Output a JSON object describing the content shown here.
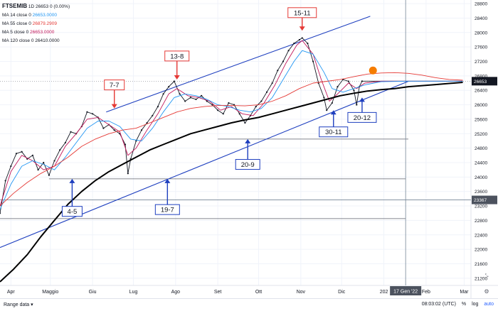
{
  "legend": {
    "symbol": "FTSEMIB",
    "interval": "1D",
    "last": "26653",
    "change": "0 (0.00%)",
    "ma14": {
      "label": "MA 14 close 0",
      "value": "26653.0000",
      "color": "#2196f3"
    },
    "ma55": {
      "label": "MA 55 close 0",
      "value": "26879.2909",
      "color": "#e53935"
    },
    "ma5": {
      "label": "MA 5 close 0",
      "value": "26653.0000",
      "color": "#c2185b"
    },
    "ma120": {
      "label": "MA 120 close 0",
      "value": "26410.0000",
      "color": "#000000"
    }
  },
  "bottombar": {
    "range_label": "Range data",
    "time": "08:03:02 (UTC)",
    "percent": "%",
    "log": "log",
    "auto": "auto"
  },
  "chart_data": {
    "type": "line",
    "ylim": [
      21000,
      28900
    ],
    "yticks": [
      21200,
      21600,
      22000,
      22400,
      22800,
      23200,
      23600,
      24000,
      24400,
      24800,
      25200,
      25600,
      26000,
      26400,
      26800,
      27200,
      27600,
      28000,
      28400,
      28800
    ],
    "xticks": [
      {
        "label": "Apr",
        "day": 8
      },
      {
        "label": "Maggio",
        "day": 37
      },
      {
        "label": "Giu",
        "day": 68
      },
      {
        "label": "Lug",
        "day": 98
      },
      {
        "label": "Ago",
        "day": 129
      },
      {
        "label": "Set",
        "day": 160
      },
      {
        "label": "Ott",
        "day": 190
      },
      {
        "label": "Nov",
        "day": 221
      },
      {
        "label": "Dic",
        "day": 251
      },
      {
        "label": "202",
        "day": 282
      },
      {
        "label": "Feb",
        "day": 313
      },
      {
        "label": "Mar",
        "day": 341
      }
    ],
    "crosshair": {
      "date_label": "17 Gen '22",
      "day": 298,
      "price_label": "23367",
      "price": 23367
    },
    "last_price_label": "26653",
    "series": [
      {
        "color": "#131722",
        "points": [
          [
            0,
            23000
          ],
          [
            4,
            23900
          ],
          [
            8,
            24300
          ],
          [
            12,
            24650
          ],
          [
            16,
            24700
          ],
          [
            20,
            24500
          ],
          [
            24,
            24600
          ],
          [
            28,
            24200
          ],
          [
            32,
            24400
          ],
          [
            36,
            24050
          ],
          [
            40,
            24450
          ],
          [
            44,
            24750
          ],
          [
            48,
            24950
          ],
          [
            52,
            25250
          ],
          [
            56,
            25200
          ],
          [
            60,
            25400
          ],
          [
            64,
            25800
          ],
          [
            68,
            25750
          ],
          [
            72,
            25650
          ],
          [
            76,
            25350
          ],
          [
            80,
            25450
          ],
          [
            84,
            25300
          ],
          [
            88,
            25200
          ],
          [
            92,
            24900
          ],
          [
            94,
            24100
          ],
          [
            96,
            24500
          ],
          [
            100,
            25000
          ],
          [
            104,
            25300
          ],
          [
            108,
            25500
          ],
          [
            112,
            25700
          ],
          [
            116,
            25950
          ],
          [
            120,
            26300
          ],
          [
            124,
            26500
          ],
          [
            128,
            26650
          ],
          [
            132,
            26300
          ],
          [
            136,
            26100
          ],
          [
            140,
            26200
          ],
          [
            144,
            26150
          ],
          [
            148,
            26250
          ],
          [
            152,
            26100
          ],
          [
            156,
            26000
          ],
          [
            160,
            25850
          ],
          [
            164,
            25750
          ],
          [
            168,
            26050
          ],
          [
            172,
            26000
          ],
          [
            176,
            25750
          ],
          [
            180,
            25500
          ],
          [
            184,
            25700
          ],
          [
            188,
            25950
          ],
          [
            192,
            26100
          ],
          [
            196,
            26350
          ],
          [
            200,
            26600
          ],
          [
            204,
            26950
          ],
          [
            208,
            27200
          ],
          [
            212,
            27500
          ],
          [
            216,
            27700
          ],
          [
            220,
            27800
          ],
          [
            222,
            27850
          ],
          [
            226,
            27700
          ],
          [
            230,
            27200
          ],
          [
            234,
            26600
          ],
          [
            238,
            26200
          ],
          [
            240,
            25850
          ],
          [
            244,
            26050
          ],
          [
            248,
            26500
          ],
          [
            252,
            26700
          ],
          [
            256,
            26650
          ],
          [
            260,
            26400
          ],
          [
            262,
            26000
          ],
          [
            264,
            26500
          ],
          [
            266,
            26653
          ],
          [
            270,
            26653
          ],
          [
            280,
            26653
          ],
          [
            300,
            26653
          ],
          [
            340,
            26653
          ]
        ]
      },
      {
        "color": "#c2185b",
        "points": [
          [
            0,
            23200
          ],
          [
            8,
            24150
          ],
          [
            16,
            24600
          ],
          [
            24,
            24450
          ],
          [
            32,
            24200
          ],
          [
            40,
            24300
          ],
          [
            48,
            24850
          ],
          [
            56,
            25200
          ],
          [
            64,
            25600
          ],
          [
            72,
            25650
          ],
          [
            80,
            25450
          ],
          [
            88,
            25250
          ],
          [
            94,
            24600
          ],
          [
            100,
            24800
          ],
          [
            108,
            25300
          ],
          [
            116,
            25750
          ],
          [
            124,
            26300
          ],
          [
            130,
            26450
          ],
          [
            138,
            26250
          ],
          [
            146,
            26200
          ],
          [
            154,
            26100
          ],
          [
            162,
            25850
          ],
          [
            170,
            25950
          ],
          [
            178,
            25750
          ],
          [
            186,
            25700
          ],
          [
            194,
            26050
          ],
          [
            202,
            26550
          ],
          [
            210,
            27150
          ],
          [
            218,
            27650
          ],
          [
            222,
            27780
          ],
          [
            230,
            27400
          ],
          [
            236,
            26700
          ],
          [
            242,
            26100
          ],
          [
            248,
            26300
          ],
          [
            256,
            26600
          ],
          [
            262,
            26450
          ],
          [
            268,
            26600
          ],
          [
            280,
            26653
          ],
          [
            340,
            26653
          ]
        ]
      },
      {
        "color": "#2196f3",
        "points": [
          [
            0,
            23100
          ],
          [
            8,
            23800
          ],
          [
            16,
            24300
          ],
          [
            24,
            24450
          ],
          [
            32,
            24350
          ],
          [
            40,
            24200
          ],
          [
            48,
            24550
          ],
          [
            56,
            24950
          ],
          [
            64,
            25350
          ],
          [
            72,
            25550
          ],
          [
            80,
            25550
          ],
          [
            88,
            25400
          ],
          [
            96,
            25050
          ],
          [
            104,
            25000
          ],
          [
            112,
            25350
          ],
          [
            120,
            25800
          ],
          [
            128,
            26200
          ],
          [
            136,
            26300
          ],
          [
            144,
            26250
          ],
          [
            152,
            26150
          ],
          [
            160,
            26000
          ],
          [
            168,
            25950
          ],
          [
            176,
            25850
          ],
          [
            184,
            25800
          ],
          [
            192,
            25900
          ],
          [
            200,
            26200
          ],
          [
            208,
            26700
          ],
          [
            216,
            27200
          ],
          [
            222,
            27500
          ],
          [
            230,
            27400
          ],
          [
            238,
            26900
          ],
          [
            244,
            26450
          ],
          [
            252,
            26350
          ],
          [
            260,
            26450
          ],
          [
            268,
            26550
          ],
          [
            280,
            26640
          ],
          [
            300,
            26653
          ],
          [
            340,
            26653
          ]
        ]
      },
      {
        "color": "#e53935",
        "points": [
          [
            0,
            23200
          ],
          [
            10,
            23550
          ],
          [
            20,
            23850
          ],
          [
            30,
            24100
          ],
          [
            40,
            24300
          ],
          [
            50,
            24550
          ],
          [
            60,
            24850
          ],
          [
            70,
            25050
          ],
          [
            80,
            25200
          ],
          [
            90,
            25300
          ],
          [
            100,
            25350
          ],
          [
            110,
            25500
          ],
          [
            120,
            25650
          ],
          [
            130,
            25800
          ],
          [
            140,
            25900
          ],
          [
            150,
            25950
          ],
          [
            160,
            25980
          ],
          [
            170,
            25980
          ],
          [
            180,
            25970
          ],
          [
            190,
            26000
          ],
          [
            200,
            26100
          ],
          [
            210,
            26250
          ],
          [
            220,
            26450
          ],
          [
            230,
            26600
          ],
          [
            240,
            26650
          ],
          [
            250,
            26700
          ],
          [
            260,
            26780
          ],
          [
            270,
            26850
          ],
          [
            280,
            26880
          ],
          [
            290,
            26890
          ],
          [
            300,
            26870
          ],
          [
            310,
            26820
          ],
          [
            320,
            26750
          ],
          [
            330,
            26700
          ],
          [
            340,
            26680
          ]
        ]
      },
      {
        "color": "#000000",
        "width": 2,
        "points": [
          [
            0,
            21100
          ],
          [
            10,
            21450
          ],
          [
            20,
            21850
          ],
          [
            30,
            22350
          ],
          [
            40,
            22800
          ],
          [
            50,
            23250
          ],
          [
            60,
            23600
          ],
          [
            70,
            23900
          ],
          [
            80,
            24150
          ],
          [
            90,
            24350
          ],
          [
            100,
            24550
          ],
          [
            110,
            24750
          ],
          [
            120,
            24900
          ],
          [
            130,
            25050
          ],
          [
            140,
            25200
          ],
          [
            150,
            25300
          ],
          [
            160,
            25400
          ],
          [
            170,
            25500
          ],
          [
            180,
            25580
          ],
          [
            190,
            25650
          ],
          [
            200,
            25750
          ],
          [
            210,
            25850
          ],
          [
            220,
            25950
          ],
          [
            230,
            26050
          ],
          [
            240,
            26150
          ],
          [
            250,
            26250
          ],
          [
            260,
            26320
          ],
          [
            270,
            26380
          ],
          [
            280,
            26420
          ],
          [
            290,
            26450
          ],
          [
            300,
            26500
          ],
          [
            320,
            26560
          ],
          [
            340,
            26620
          ]
        ]
      }
    ],
    "trendlines": [
      {
        "color": "#1e3fbf",
        "from": [
          78,
          25800
        ],
        "to": [
          272,
          28450
        ]
      },
      {
        "color": "#1e3fbf",
        "from": [
          0,
          22050
        ],
        "to": [
          300,
          26650
        ]
      }
    ],
    "hlines": [
      {
        "price": 25050,
        "from": 160,
        "to": 300
      },
      {
        "price": 23950,
        "from": 36,
        "to": 298
      },
      {
        "price": 22850,
        "from": 0,
        "to": 298
      }
    ],
    "marker": {
      "day": 274,
      "price": 26950,
      "color": "#f57c00"
    },
    "annotations": [
      {
        "label": "15-11",
        "style": "red",
        "day": 222,
        "price": 28550,
        "arrow_to": 28050
      },
      {
        "label": "13-8",
        "style": "red",
        "day": 130,
        "price": 27350,
        "arrow_to": 26700
      },
      {
        "label": "7-7",
        "style": "red",
        "day": 84,
        "price": 26550,
        "arrow_to": 25900
      },
      {
        "label": "4-5",
        "style": "blue",
        "day": 53,
        "price": 23050,
        "arrow_to": 23950
      },
      {
        "label": "19-7",
        "style": "blue",
        "day": 123,
        "price": 23100,
        "arrow_to": 23950
      },
      {
        "label": "20-9",
        "style": "blue",
        "day": 182,
        "price": 24350,
        "arrow_to": 25050
      },
      {
        "label": "30-11",
        "style": "blue",
        "day": 245,
        "price": 25250,
        "arrow_to": 25850
      },
      {
        "label": "20-12",
        "style": "blue",
        "day": 266,
        "price": 25650,
        "arrow_to": 26200
      }
    ]
  }
}
